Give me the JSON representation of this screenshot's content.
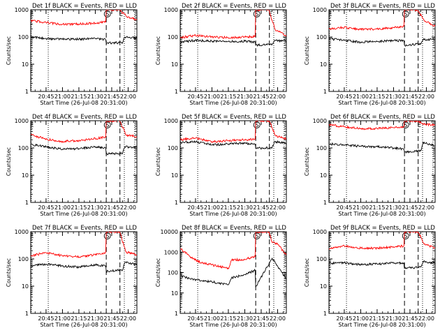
{
  "common": {
    "xlabel": "Start Time (26-Jul-08 20:31:00)",
    "ylabel": "Counts/sec",
    "x_start": "20:31:00",
    "x_end": "22:08:00",
    "xticks": [
      "20:45",
      "21:00",
      "21:15",
      "21:30",
      "21:45",
      "22:00"
    ],
    "yticks_3": [
      "1",
      "10",
      "100",
      "1000"
    ],
    "yticks_4": [
      "1",
      "10",
      "100",
      "1000",
      "10000"
    ],
    "dotted_lines": [
      "20:31:30",
      "20:47:00",
      "21:56:30",
      "22:06:00"
    ],
    "dashed_lines": [
      "21:40:00",
      "21:52:30"
    ],
    "markers": [
      {
        "text": "E",
        "time": "20:32:00",
        "circled": false
      },
      {
        "text": "S",
        "time": "21:41:00",
        "circled": true
      },
      {
        "text": "E",
        "time": "21:53:30",
        "circled": false
      }
    ],
    "series_colors": {
      "events": "#000000",
      "lld": "#ff0000"
    }
  },
  "chart_data": [
    {
      "type": "line",
      "title": "Det 1f BLACK = Events, RED = LLD",
      "ylim": [
        1,
        1000
      ],
      "yscale": "log",
      "series": [
        {
          "name": "Events",
          "points": [
            [
              "20:31:00",
              100
            ],
            [
              "20:45:00",
              88
            ],
            [
              "21:00:00",
              82
            ],
            [
              "21:15:00",
              84
            ],
            [
              "21:30:00",
              88
            ],
            [
              "21:39:30",
              80
            ],
            [
              "21:40:00",
              60
            ],
            [
              "21:55:00",
              62
            ],
            [
              "21:57:00",
              100
            ],
            [
              "22:08:00",
              90
            ]
          ]
        },
        {
          "name": "LLD",
          "points": [
            [
              "20:31:00",
              400
            ],
            [
              "20:45:00",
              340
            ],
            [
              "21:00:00",
              290
            ],
            [
              "21:15:00",
              300
            ],
            [
              "21:30:00",
              320
            ],
            [
              "21:39:30",
              360
            ],
            [
              "21:40:00",
              1000
            ],
            [
              "21:52:00",
              1000
            ],
            [
              "21:53:00",
              900
            ],
            [
              "21:58:00",
              600
            ],
            [
              "22:08:00",
              420
            ]
          ]
        }
      ]
    },
    {
      "type": "line",
      "title": "Det 2f BLACK = Events, RED = LLD",
      "ylim": [
        1,
        1000
      ],
      "yscale": "log",
      "series": [
        {
          "name": "Events",
          "points": [
            [
              "20:31:00",
              65
            ],
            [
              "20:45:00",
              75
            ],
            [
              "21:00:00",
              70
            ],
            [
              "21:15:00",
              68
            ],
            [
              "21:30:00",
              70
            ],
            [
              "21:39:30",
              65
            ],
            [
              "21:40:00",
              50
            ],
            [
              "21:55:00",
              52
            ],
            [
              "21:57:00",
              75
            ],
            [
              "22:08:00",
              70
            ]
          ]
        },
        {
          "name": "LLD",
          "points": [
            [
              "20:31:00",
              95
            ],
            [
              "20:45:00",
              115
            ],
            [
              "21:00:00",
              100
            ],
            [
              "21:15:00",
              95
            ],
            [
              "21:30:00",
              100
            ],
            [
              "21:39:30",
              105
            ],
            [
              "21:40:00",
              1000
            ],
            [
              "21:52:00",
              1000
            ],
            [
              "21:53:00",
              700
            ],
            [
              "21:58:00",
              180
            ],
            [
              "22:08:00",
              110
            ]
          ]
        }
      ]
    },
    {
      "type": "line",
      "title": "Det 3f BLACK = Events, RED = LLD",
      "ylim": [
        1,
        1000
      ],
      "yscale": "log",
      "series": [
        {
          "name": "Events",
          "points": [
            [
              "20:31:00",
              85
            ],
            [
              "20:45:00",
              75
            ],
            [
              "21:00:00",
              65
            ],
            [
              "21:15:00",
              68
            ],
            [
              "21:30:00",
              75
            ],
            [
              "21:39:30",
              72
            ],
            [
              "21:40:00",
              50
            ],
            [
              "21:55:00",
              55
            ],
            [
              "21:57:00",
              80
            ],
            [
              "22:08:00",
              80
            ]
          ]
        },
        {
          "name": "LLD",
          "points": [
            [
              "20:31:00",
              200
            ],
            [
              "20:45:00",
              225
            ],
            [
              "21:00:00",
              190
            ],
            [
              "21:15:00",
              195
            ],
            [
              "21:30:00",
              220
            ],
            [
              "21:39:30",
              250
            ],
            [
              "21:40:00",
              1000
            ],
            [
              "21:52:00",
              1000
            ],
            [
              "21:53:00",
              850
            ],
            [
              "21:58:00",
              400
            ],
            [
              "22:08:00",
              250
            ]
          ]
        }
      ]
    },
    {
      "type": "line",
      "title": "Det 4f BLACK = Events, RED = LLD",
      "ylim": [
        1,
        1000
      ],
      "yscale": "log",
      "series": [
        {
          "name": "Events",
          "points": [
            [
              "20:31:00",
              135
            ],
            [
              "20:45:00",
              110
            ],
            [
              "21:00:00",
              90
            ],
            [
              "21:15:00",
              95
            ],
            [
              "21:30:00",
              110
            ],
            [
              "21:39:30",
              100
            ],
            [
              "21:40:00",
              60
            ],
            [
              "21:55:00",
              65
            ],
            [
              "21:57:00",
              110
            ],
            [
              "22:08:00",
              105
            ]
          ]
        },
        {
          "name": "LLD",
          "points": [
            [
              "20:31:00",
              310
            ],
            [
              "20:45:00",
              210
            ],
            [
              "21:00:00",
              175
            ],
            [
              "21:15:00",
              185
            ],
            [
              "21:30:00",
              220
            ],
            [
              "21:39:30",
              250
            ],
            [
              "21:40:00",
              1000
            ],
            [
              "21:52:00",
              1000
            ],
            [
              "21:53:00",
              900
            ],
            [
              "21:58:00",
              300
            ],
            [
              "22:08:00",
              260
            ]
          ]
        }
      ]
    },
    {
      "type": "line",
      "title": "Det 5f BLACK = Events, RED = LLD",
      "ylim": [
        1,
        1000
      ],
      "yscale": "log",
      "series": [
        {
          "name": "Events",
          "points": [
            [
              "20:31:00",
              160
            ],
            [
              "20:45:00",
              170
            ],
            [
              "21:00:00",
              130
            ],
            [
              "21:15:00",
              140
            ],
            [
              "21:30:00",
              150
            ],
            [
              "21:39:30",
              135
            ],
            [
              "21:40:00",
              100
            ],
            [
              "21:55:00",
              100
            ],
            [
              "21:57:00",
              170
            ],
            [
              "22:08:00",
              150
            ]
          ]
        },
        {
          "name": "LLD",
          "points": [
            [
              "20:31:00",
              200
            ],
            [
              "20:45:00",
              230
            ],
            [
              "21:00:00",
              170
            ],
            [
              "21:15:00",
              185
            ],
            [
              "21:30:00",
              200
            ],
            [
              "21:39:30",
              210
            ],
            [
              "21:40:00",
              1000
            ],
            [
              "21:52:00",
              1000
            ],
            [
              "21:53:00",
              900
            ],
            [
              "21:58:00",
              280
            ],
            [
              "22:08:00",
              220
            ]
          ]
        }
      ]
    },
    {
      "type": "line",
      "title": "Det 6f BLACK = Events, RED = LLD",
      "ylim": [
        1,
        1000
      ],
      "yscale": "log",
      "series": [
        {
          "name": "Events",
          "points": [
            [
              "20:31:00",
              140
            ],
            [
              "20:45:00",
              130
            ],
            [
              "21:00:00",
              115
            ],
            [
              "21:15:00",
              110
            ],
            [
              "21:30:00",
              100
            ],
            [
              "21:39:30",
              90
            ],
            [
              "21:40:00",
              70
            ],
            [
              "21:55:00",
              80
            ],
            [
              "21:57:00",
              160
            ],
            [
              "22:08:00",
              120
            ]
          ]
        },
        {
          "name": "LLD",
          "points": [
            [
              "20:31:00",
              720
            ],
            [
              "20:45:00",
              600
            ],
            [
              "21:00:00",
              520
            ],
            [
              "21:15:00",
              520
            ],
            [
              "21:30:00",
              560
            ],
            [
              "21:39:30",
              600
            ],
            [
              "21:40:00",
              1000
            ],
            [
              "21:52:00",
              1000
            ],
            [
              "21:53:00",
              950
            ],
            [
              "21:58:00",
              750
            ],
            [
              "22:08:00",
              700
            ]
          ]
        }
      ]
    },
    {
      "type": "line",
      "title": "Det 7f BLACK = Events, RED = LLD",
      "ylim": [
        1,
        1000
      ],
      "yscale": "log",
      "series": [
        {
          "name": "Events",
          "points": [
            [
              "20:31:00",
              55
            ],
            [
              "20:45:00",
              65
            ],
            [
              "21:00:00",
              55
            ],
            [
              "21:15:00",
              50
            ],
            [
              "21:30:00",
              60
            ],
            [
              "21:39:30",
              55
            ],
            [
              "21:40:00",
              35
            ],
            [
              "21:55:00",
              40
            ],
            [
              "21:57:00",
              75
            ],
            [
              "22:08:00",
              60
            ]
          ]
        },
        {
          "name": "LLD",
          "points": [
            [
              "20:31:00",
              130
            ],
            [
              "20:45:00",
              170
            ],
            [
              "21:00:00",
              130
            ],
            [
              "21:15:00",
              120
            ],
            [
              "21:30:00",
              140
            ],
            [
              "21:39:30",
              170
            ],
            [
              "21:40:00",
              1000
            ],
            [
              "21:52:00",
              1000
            ],
            [
              "21:53:00",
              800
            ],
            [
              "21:58:00",
              180
            ],
            [
              "22:08:00",
              140
            ]
          ]
        }
      ]
    },
    {
      "type": "line",
      "title": "Det 8f BLACK = Events, RED = LLD",
      "ylim": [
        1,
        10000
      ],
      "yscale": "log",
      "series": [
        {
          "name": "Events",
          "points": [
            [
              "20:31:00",
              70
            ],
            [
              "20:40:00",
              50
            ],
            [
              "20:50:00",
              40
            ],
            [
              "21:00:00",
              35
            ],
            [
              "21:15:00",
              25
            ],
            [
              "21:18:00",
              55
            ],
            [
              "21:30:00",
              80
            ],
            [
              "21:39:30",
              130
            ],
            [
              "21:40:00",
              20
            ],
            [
              "21:55:00",
              500
            ],
            [
              "22:00:00",
              200
            ],
            [
              "22:08:00",
              50
            ]
          ]
        },
        {
          "name": "LLD",
          "points": [
            [
              "20:31:00",
              1500
            ],
            [
              "20:40:00",
              600
            ],
            [
              "20:50:00",
              300
            ],
            [
              "21:00:00",
              240
            ],
            [
              "21:10:00",
              180
            ],
            [
              "21:15:00",
              150
            ],
            [
              "21:18:00",
              400
            ],
            [
              "21:30:00",
              450
            ],
            [
              "21:39:30",
              600
            ],
            [
              "21:40:00",
              10000
            ],
            [
              "21:52:00",
              10000
            ],
            [
              "21:55:00",
              3000
            ],
            [
              "22:00:00",
              2500
            ],
            [
              "22:08:00",
              700
            ]
          ]
        }
      ]
    },
    {
      "type": "line",
      "title": "Det 9f BLACK = Events, RED = LLD",
      "ylim": [
        1,
        1000
      ],
      "yscale": "log",
      "series": [
        {
          "name": "Events",
          "points": [
            [
              "20:31:00",
              70
            ],
            [
              "20:45:00",
              72
            ],
            [
              "21:00:00",
              62
            ],
            [
              "21:15:00",
              65
            ],
            [
              "21:30:00",
              72
            ],
            [
              "21:39:30",
              70
            ],
            [
              "21:40:00",
              45
            ],
            [
              "21:55:00",
              50
            ],
            [
              "21:57:00",
              80
            ],
            [
              "22:08:00",
              70
            ]
          ]
        },
        {
          "name": "LLD",
          "points": [
            [
              "20:31:00",
              230
            ],
            [
              "20:45:00",
              300
            ],
            [
              "21:00:00",
              250
            ],
            [
              "21:15:00",
              250
            ],
            [
              "21:30:00",
              280
            ],
            [
              "21:39:30",
              300
            ],
            [
              "21:40:00",
              1000
            ],
            [
              "21:52:00",
              1000
            ],
            [
              "21:53:00",
              900
            ],
            [
              "21:58:00",
              350
            ],
            [
              "22:08:00",
              260
            ]
          ]
        }
      ]
    }
  ]
}
